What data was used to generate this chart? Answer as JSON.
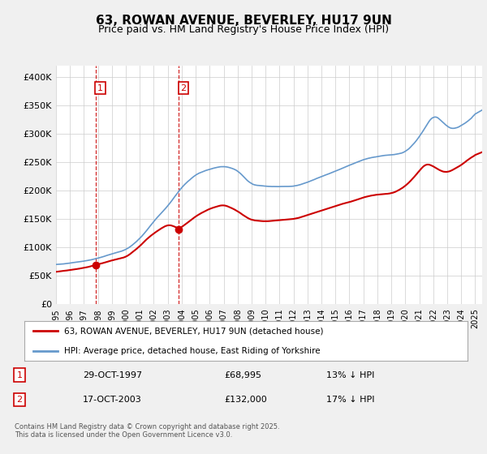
{
  "title": "63, ROWAN AVENUE, BEVERLEY, HU17 9UN",
  "subtitle": "Price paid vs. HM Land Registry's House Price Index (HPI)",
  "ylabel_ticks": [
    "£0",
    "£50K",
    "£100K",
    "£150K",
    "£200K",
    "£250K",
    "£300K",
    "£350K",
    "£400K"
  ],
  "ytick_values": [
    0,
    50000,
    100000,
    150000,
    200000,
    250000,
    300000,
    350000,
    400000
  ],
  "ylim": [
    0,
    420000
  ],
  "xlim_start": 1995.0,
  "xlim_end": 2025.5,
  "hpi_color": "#6699cc",
  "price_color": "#cc0000",
  "dashed_color": "#cc0000",
  "bg_color": "#f0f0f0",
  "plot_bg": "#ffffff",
  "grid_color": "#cccccc",
  "purchase1_x": 1997.83,
  "purchase1_y": 68995,
  "purchase2_x": 2003.8,
  "purchase2_y": 132000,
  "legend_line1": "63, ROWAN AVENUE, BEVERLEY, HU17 9UN (detached house)",
  "legend_line2": "HPI: Average price, detached house, East Riding of Yorkshire",
  "table_row1_num": "1",
  "table_row1_date": "29-OCT-1997",
  "table_row1_price": "£68,995",
  "table_row1_hpi": "13% ↓ HPI",
  "table_row2_num": "2",
  "table_row2_date": "17-OCT-2003",
  "table_row2_price": "£132,000",
  "table_row2_hpi": "17% ↓ HPI",
  "footer": "Contains HM Land Registry data © Crown copyright and database right 2025.\nThis data is licensed under the Open Government Licence v3.0.",
  "xtick_years": [
    1995,
    1996,
    1997,
    1998,
    1999,
    2000,
    2001,
    2002,
    2003,
    2004,
    2005,
    2006,
    2007,
    2008,
    2009,
    2010,
    2011,
    2012,
    2013,
    2014,
    2015,
    2016,
    2017,
    2018,
    2019,
    2020,
    2021,
    2022,
    2023,
    2024,
    2025
  ],
  "hpi_anchors_x": [
    1995,
    1995.5,
    1996,
    1996.5,
    1997,
    1997.5,
    1998,
    1998.5,
    1999,
    1999.5,
    2000,
    2000.5,
    2001,
    2001.5,
    2002,
    2002.5,
    2003,
    2003.5,
    2004,
    2004.5,
    2005,
    2005.5,
    2006,
    2006.5,
    2007,
    2007.5,
    2008,
    2008.5,
    2009,
    2009.5,
    2010,
    2010.5,
    2011,
    2011.5,
    2012,
    2012.5,
    2013,
    2013.5,
    2014,
    2014.5,
    2015,
    2015.5,
    2016,
    2016.5,
    2017,
    2017.5,
    2018,
    2018.5,
    2019,
    2019.5,
    2020,
    2020.5,
    2021,
    2021.5,
    2022,
    2022.5,
    2023,
    2023.5,
    2024,
    2024.5,
    2025,
    2025.5
  ],
  "hpi_anchors_y": [
    70000,
    71000,
    73000,
    74500,
    76000,
    78000,
    81000,
    85000,
    89000,
    92000,
    96000,
    105000,
    116000,
    130000,
    147000,
    160000,
    173000,
    190000,
    207000,
    218000,
    229000,
    234000,
    238000,
    241000,
    243000,
    240000,
    236000,
    222000,
    210000,
    209000,
    208000,
    207000,
    207000,
    207500,
    208000,
    211000,
    215000,
    220000,
    225000,
    230000,
    235000,
    240000,
    245000,
    250000,
    255000,
    258000,
    260000,
    262000,
    263000,
    265000,
    268000,
    280000,
    295000,
    315000,
    335000,
    325000,
    312000,
    308000,
    315000,
    322000,
    335000,
    342000
  ],
  "price_anchors_x": [
    1995,
    1995.5,
    1996,
    1996.5,
    1997,
    1997.5,
    1997.83,
    1998,
    1998.5,
    1999,
    1999.5,
    2000,
    2000.5,
    2001,
    2001.5,
    2002,
    2002.5,
    2003,
    2003.5,
    2003.8,
    2004,
    2004.5,
    2005,
    2005.5,
    2006,
    2006.5,
    2007,
    2007.5,
    2008,
    2008.5,
    2009,
    2009.5,
    2010,
    2010.5,
    2011,
    2011.5,
    2012,
    2012.5,
    2013,
    2013.5,
    2014,
    2014.5,
    2015,
    2015.5,
    2016,
    2016.5,
    2017,
    2017.5,
    2018,
    2018.5,
    2019,
    2019.5,
    2020,
    2020.5,
    2021,
    2021.5,
    2022,
    2022.5,
    2023,
    2023.5,
    2024,
    2024.5,
    2025,
    2025.5
  ],
  "price_anchors_y": [
    57000,
    58500,
    60000,
    62000,
    64000,
    66500,
    68995,
    70000,
    73000,
    77000,
    80000,
    83000,
    92000,
    102000,
    115000,
    125000,
    133000,
    140000,
    137000,
    132000,
    136000,
    145000,
    155000,
    162000,
    168000,
    172000,
    175000,
    170000,
    164000,
    155000,
    148000,
    147000,
    146000,
    147000,
    148000,
    149000,
    150000,
    153000,
    157000,
    161000,
    165000,
    169000,
    173000,
    177000,
    180000,
    184000,
    188000,
    191000,
    193000,
    194000,
    195000,
    200000,
    208000,
    220000,
    235000,
    248000,
    243000,
    235000,
    232000,
    238000,
    245000,
    255000,
    263000,
    268000
  ]
}
